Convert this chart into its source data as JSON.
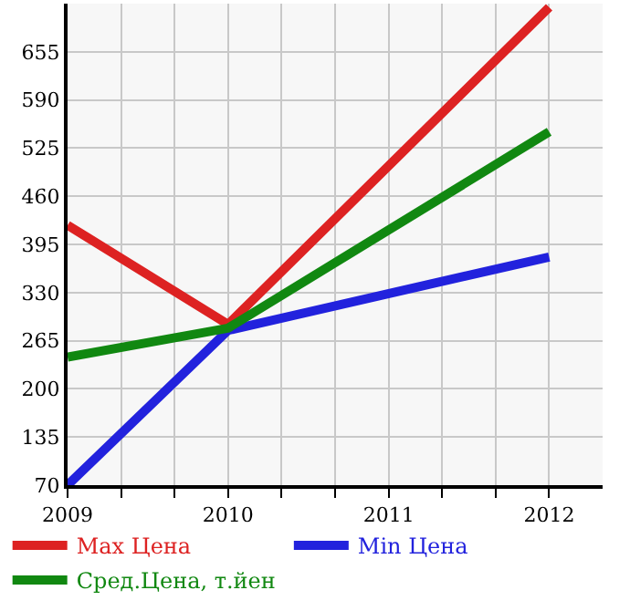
{
  "chart_data": {
    "type": "line",
    "x": [
      2009,
      2010,
      2012
    ],
    "series": [
      {
        "name": "Max Цена",
        "color": "#dd2222",
        "values": [
          421,
          287,
          715
        ]
      },
      {
        "name": "Min Цена",
        "color": "#2222dd",
        "values": [
          70,
          279,
          378
        ]
      },
      {
        "name": "Сред.Цена, т.йен",
        "color": "#118811",
        "values": [
          243,
          282,
          547
        ]
      }
    ],
    "xlim": [
      2009,
      2012.333
    ],
    "xticks": [
      2009,
      {
        "value": 2009.333,
        "label": null
      },
      {
        "value": 2009.667,
        "label": null
      },
      2010,
      {
        "value": 2010.333,
        "label": null
      },
      {
        "value": 2010.667,
        "label": null
      },
      2011,
      {
        "value": 2011.333,
        "label": null
      },
      {
        "value": 2011.667,
        "label": null
      },
      2012
    ],
    "ylim": [
      70,
      720
    ],
    "yticks": [
      70,
      135,
      200,
      265,
      330,
      395,
      460,
      525,
      590,
      655
    ],
    "grid": true,
    "legend": "bottom",
    "marker": "none",
    "line_style": "solid"
  }
}
